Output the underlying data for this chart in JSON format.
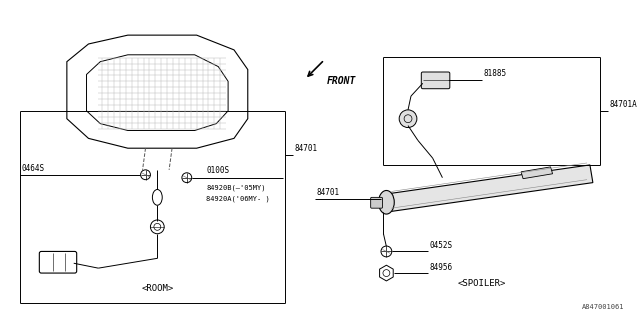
{
  "bg_color": "#ffffff",
  "line_color": "#000000",
  "fig_width": 6.4,
  "fig_height": 3.2,
  "dpi": 100,
  "watermark": "A847001061",
  "labels": {
    "front": "FRONT",
    "room": "<ROOM>",
    "spoiler": "<SPOILER>",
    "part_84701_left": "84701",
    "part_84701A": "84701A",
    "part_81885": "81885",
    "part_0464S": "0464S",
    "part_0100S": "0100S",
    "part_84920B": "84920B(–'05MY)",
    "part_84920A": "84920A('06MY- )",
    "part_0452S": "0452S",
    "part_84956": "84956"
  }
}
